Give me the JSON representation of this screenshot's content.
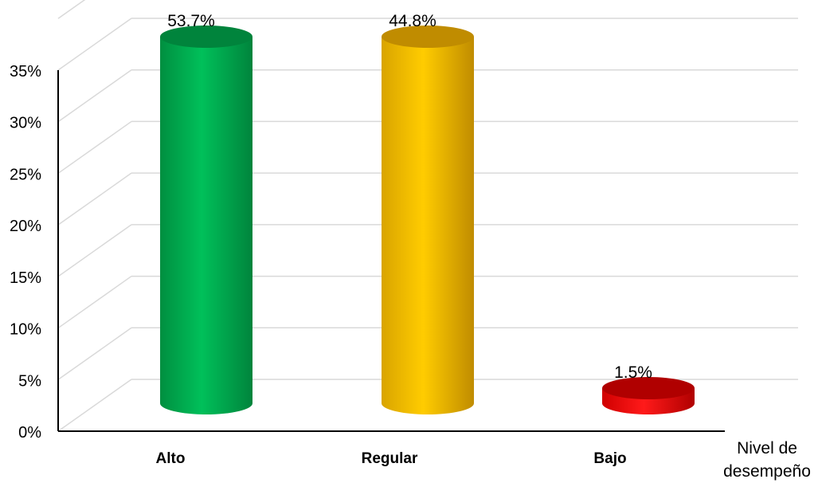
{
  "chart_data": {
    "type": "bar",
    "style": "3d-cylinder",
    "categories": [
      "Alto",
      "Regular",
      "Bajo"
    ],
    "values": [
      53.7,
      44.8,
      1.5
    ],
    "data_labels": [
      "53.7%",
      "44.8%",
      "1.5%"
    ],
    "colors": [
      "#00b050",
      "#ffc000",
      "#ff0000"
    ],
    "dark_colors": [
      "#00843c",
      "#c08c00",
      "#b00000"
    ],
    "y_ticks": [
      "0%",
      "5%",
      "10%",
      "15%",
      "20%",
      "25%",
      "30%",
      "35%"
    ],
    "y_tick_values": [
      0,
      5,
      10,
      15,
      20,
      25,
      30,
      35
    ],
    "ylim": [
      0,
      35
    ],
    "xlabel_lines": [
      "Nivel de",
      "desempeño"
    ],
    "grid": true,
    "legend": "none"
  }
}
